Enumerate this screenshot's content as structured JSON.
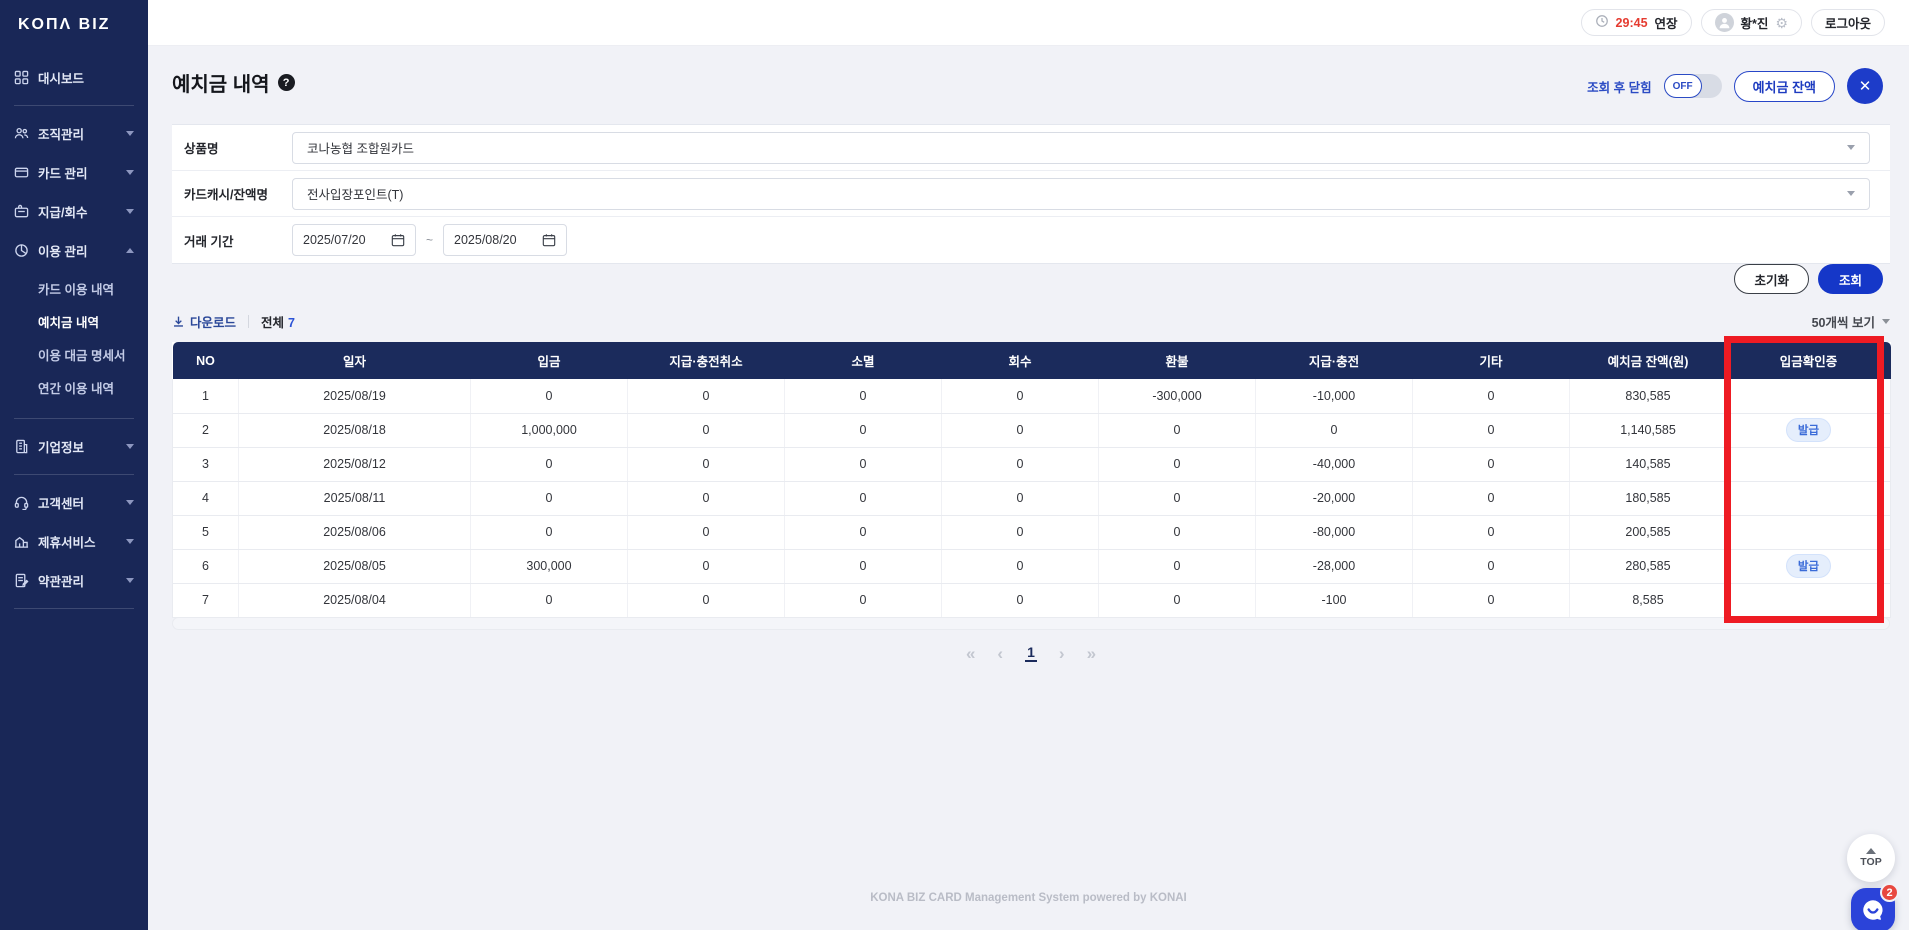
{
  "brand": {
    "logo_text": "KOΠΛ BIZ"
  },
  "topbar": {
    "session_time": "29:45",
    "extend_label": "연장",
    "user_name": "황*진",
    "gear_icon": "⚙",
    "logout_label": "로그아웃"
  },
  "sidebar": {
    "items": [
      {
        "label": "대시보드"
      },
      {
        "label": "조직관리"
      },
      {
        "label": "카드 관리"
      },
      {
        "label": "지급/회수"
      },
      {
        "label": "이용 관리"
      },
      {
        "label": "기업정보"
      },
      {
        "label": "고객센터"
      },
      {
        "label": "제휴서비스"
      },
      {
        "label": "약관관리"
      }
    ],
    "usage_children": [
      {
        "label": "카드 이용 내역",
        "active": false
      },
      {
        "label": "예치금 내역",
        "active": true
      },
      {
        "label": "이용 대금 명세서",
        "active": false
      },
      {
        "label": "연간 이용 내역",
        "active": false
      }
    ]
  },
  "page": {
    "title": "예치금 내역",
    "help_icon": "?",
    "auto_close_label": "조회 후 닫힘",
    "toggle_state": "OFF",
    "balance_button_label": "예치금 잔액",
    "close_icon": "✕"
  },
  "filters": {
    "product": {
      "label": "상품명",
      "value": "코나농협 조합원카드"
    },
    "cash": {
      "label": "카드캐시/잔액명",
      "value": "전사입장포인트(T)"
    },
    "period": {
      "label": "거래 기간",
      "from": "2025/07/20",
      "to": "2025/08/20",
      "separator": "~"
    }
  },
  "actions": {
    "reset_label": "초기화",
    "search_label": "조회"
  },
  "list_toolbar": {
    "download_label": "다운로드",
    "total_label": "전체",
    "total_count": "7",
    "page_size_label": "50개씩 보기"
  },
  "table": {
    "columns": [
      "NO",
      "일자",
      "입금",
      "지급·충전취소",
      "소멸",
      "회수",
      "환불",
      "지급·충전",
      "기타",
      "예치금 잔액(원)",
      "입금확인증"
    ],
    "col_keys": [
      "no",
      "date",
      "deposit",
      "pay-charge-cancel",
      "expire",
      "recover",
      "refund",
      "pay-charge",
      "etc",
      "balance",
      "receipt"
    ],
    "rows": [
      [
        "1",
        "2025/08/19",
        "0",
        "0",
        "0",
        "0",
        "-300,000",
        "-10,000",
        "0",
        "830,585",
        ""
      ],
      [
        "2",
        "2025/08/18",
        "1,000,000",
        "0",
        "0",
        "0",
        "0",
        "0",
        "0",
        "1,140,585",
        "발급"
      ],
      [
        "3",
        "2025/08/12",
        "0",
        "0",
        "0",
        "0",
        "0",
        "-40,000",
        "0",
        "140,585",
        ""
      ],
      [
        "4",
        "2025/08/11",
        "0",
        "0",
        "0",
        "0",
        "0",
        "-20,000",
        "0",
        "180,585",
        ""
      ],
      [
        "5",
        "2025/08/06",
        "0",
        "0",
        "0",
        "0",
        "0",
        "-80,000",
        "0",
        "200,585",
        ""
      ],
      [
        "6",
        "2025/08/05",
        "300,000",
        "0",
        "0",
        "0",
        "0",
        "-28,000",
        "0",
        "280,585",
        "발급"
      ],
      [
        "7",
        "2025/08/04",
        "0",
        "0",
        "0",
        "0",
        "0",
        "-100",
        "0",
        "8,585",
        ""
      ]
    ],
    "badge_label": "발급"
  },
  "pagination": {
    "first": "«",
    "prev": "‹",
    "current": "1",
    "next": "›",
    "last": "»"
  },
  "footer": {
    "text": "KONA BIZ CARD Management System powered by KONAI"
  },
  "floating": {
    "top_label": "TOP",
    "chat_badge_count": "2"
  },
  "colors": {
    "sidebar_navy": "#192757",
    "table_header_navy": "#1B2B5C",
    "primary_blue": "#1537C8",
    "timer_red": "#E53B30",
    "annotation_red": "#EE1B23",
    "badge_bg": "#E5EEFC",
    "badge_text": "#3A6BD8",
    "page_bg": "#F1F2F7"
  }
}
